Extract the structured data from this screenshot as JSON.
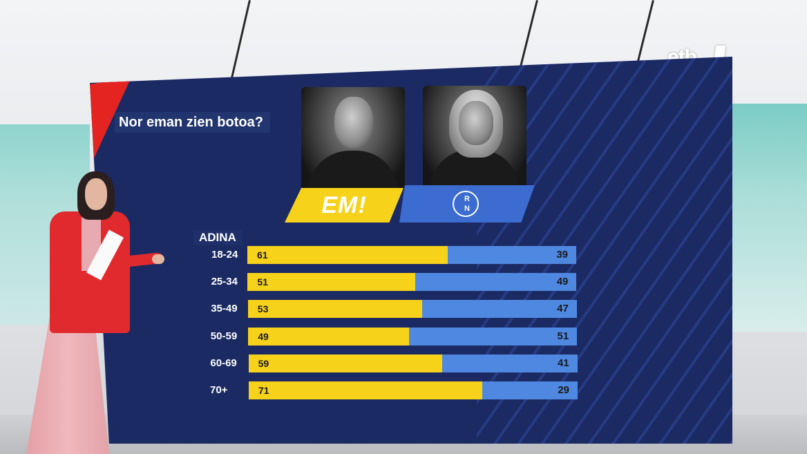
{
  "broadcaster_logo": "etb",
  "party_labels": {
    "em": "EM!",
    "rn_line1": "R",
    "rn_line2": "N"
  },
  "colors": {
    "em": "#f7d21a",
    "rn": "#4f88e0",
    "panel": "#1b2a63",
    "accent_red": "#e42421"
  },
  "chart_data": {
    "type": "bar",
    "orientation": "horizontal",
    "stacked": true,
    "title": "Nor eman zien botoa?",
    "group_label": "ADINA",
    "categories": [
      "18-24",
      "25-34",
      "35-49",
      "50-59",
      "60-69",
      "70+"
    ],
    "series": [
      {
        "name": "EM!",
        "color": "#f7d21a",
        "values": [
          61,
          51,
          53,
          49,
          59,
          71
        ]
      },
      {
        "name": "RN",
        "color": "#4f88e0",
        "values": [
          39,
          49,
          47,
          51,
          41,
          29
        ]
      }
    ],
    "xlim": [
      0,
      100
    ],
    "grid": false,
    "legend": "none"
  }
}
